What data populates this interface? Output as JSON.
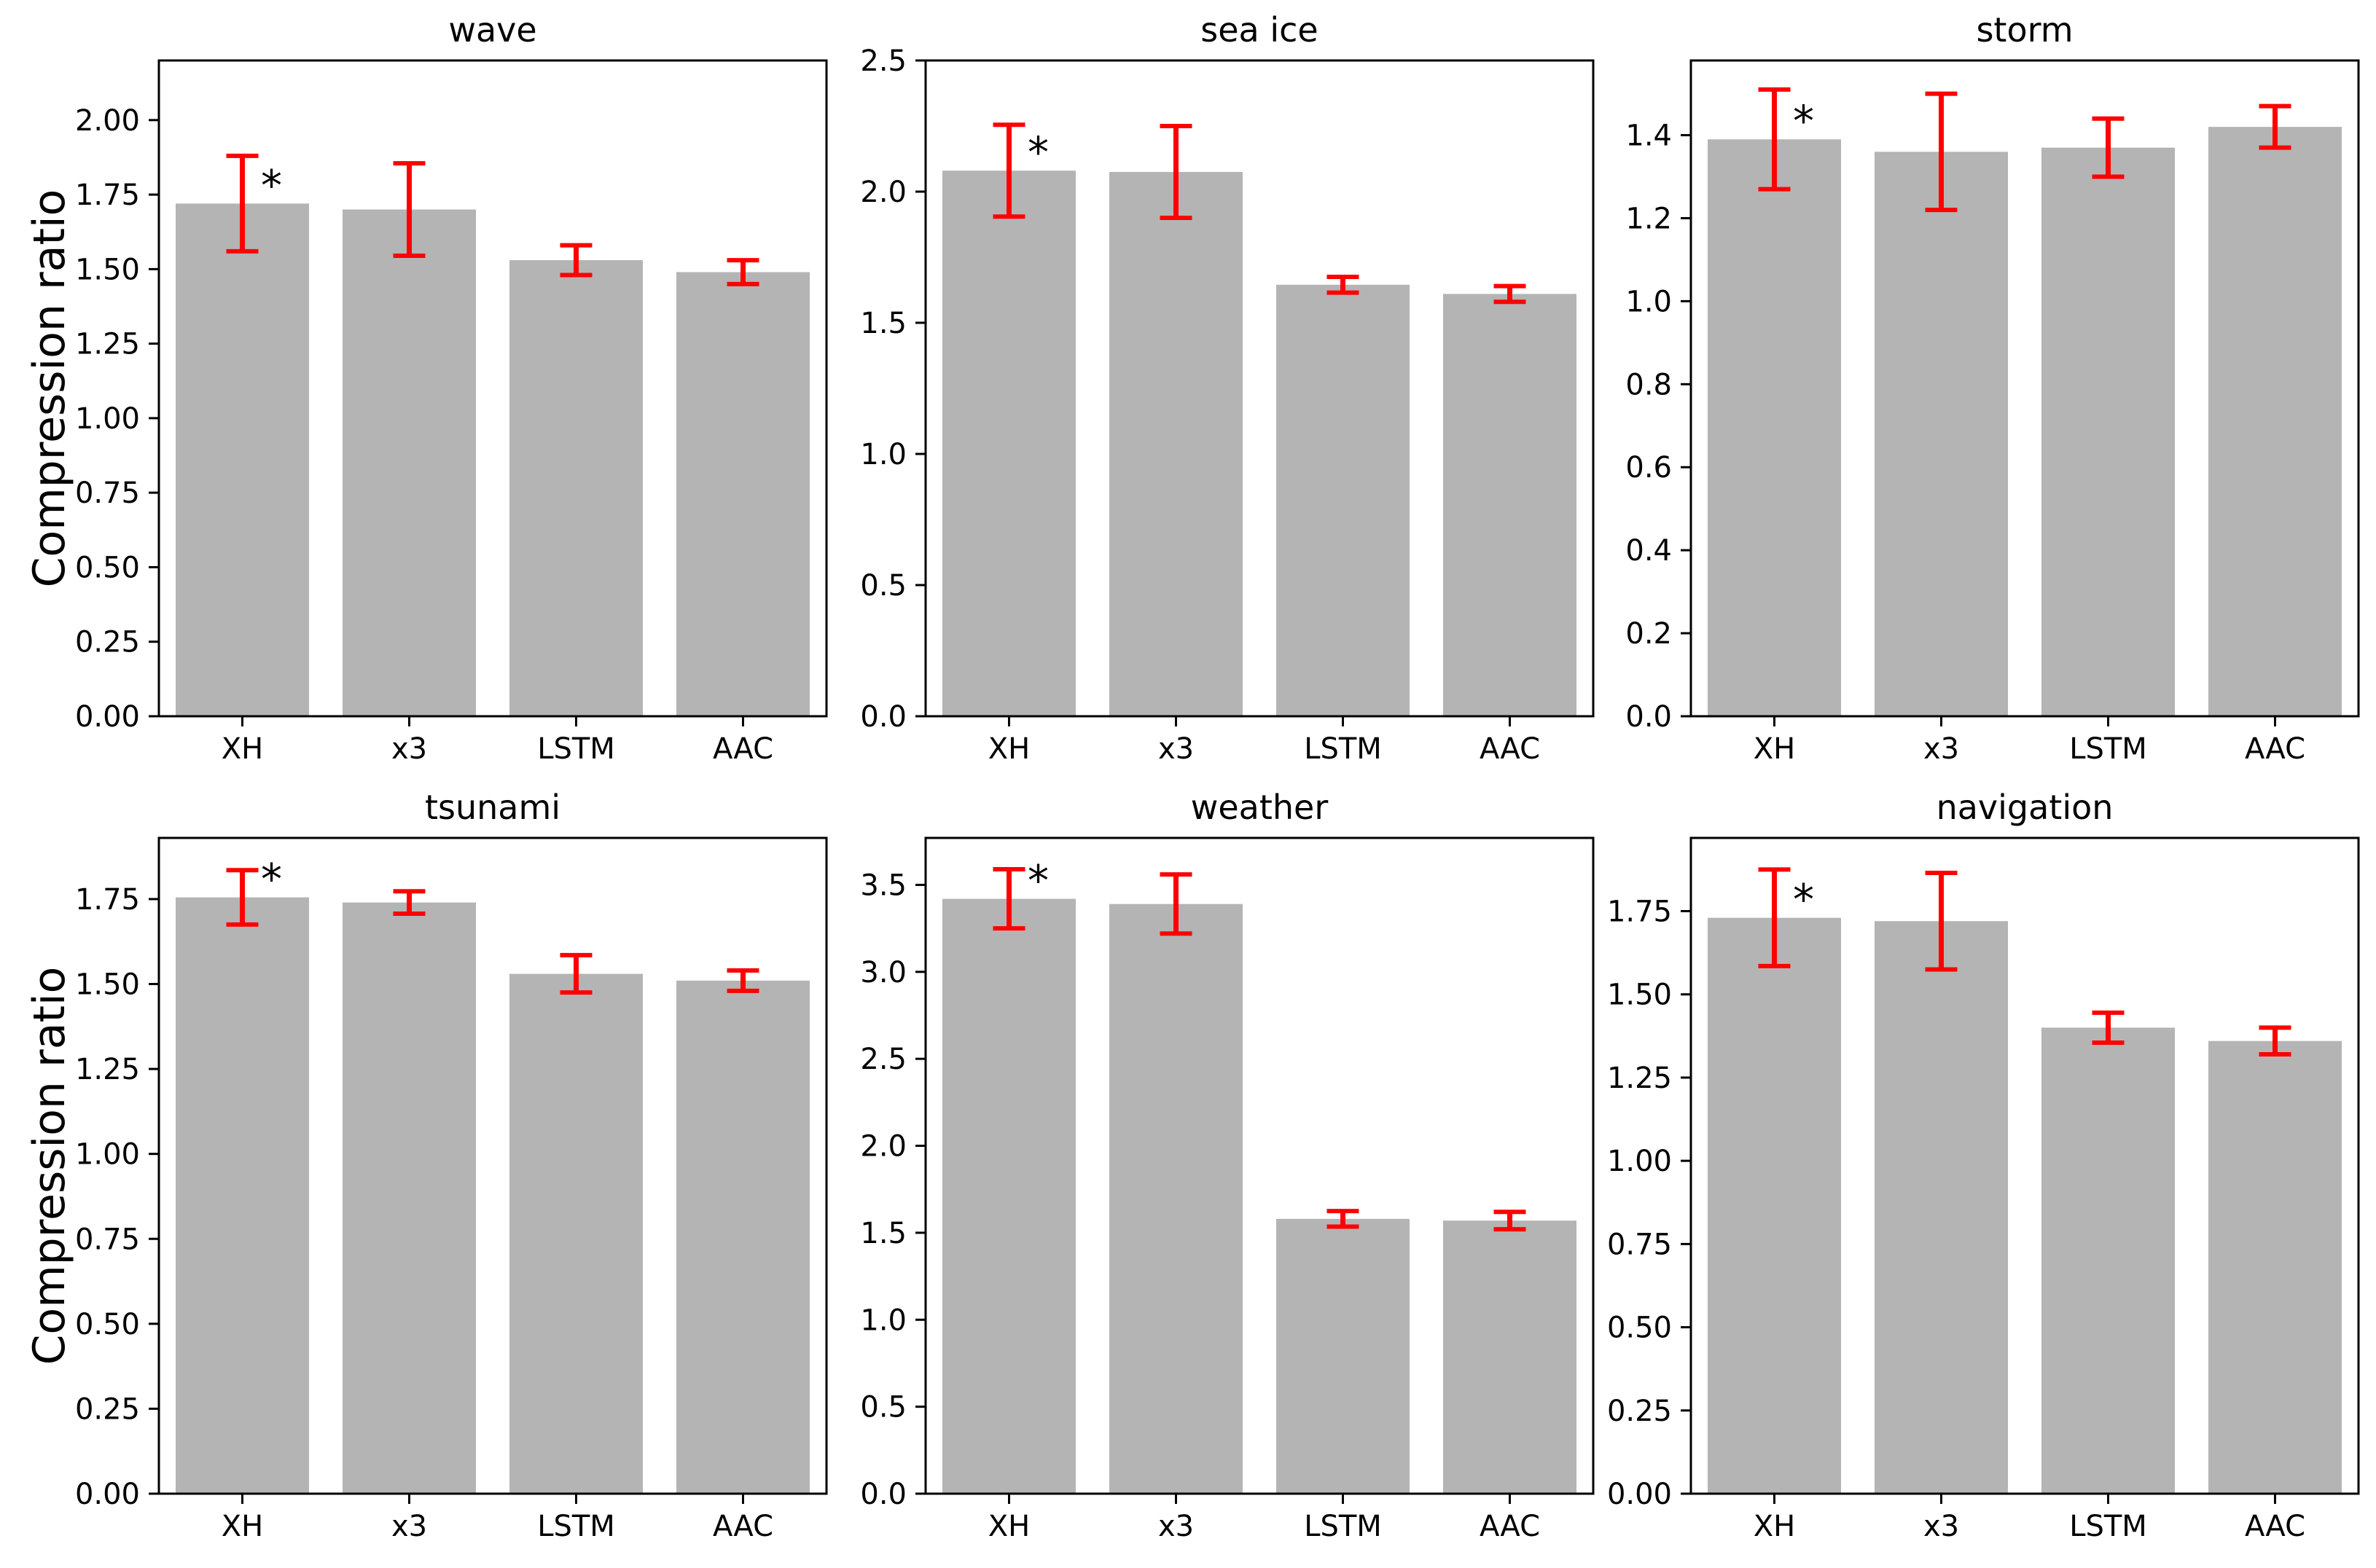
{
  "figure": {
    "background": "#ffffff",
    "bar_color": "#b4b4b4",
    "error_color": "#ff0000",
    "frame_color": "#000000",
    "text_color": "#000000",
    "significance_marker": "*"
  },
  "chart_data": [
    {
      "type": "bar",
      "title": "wave",
      "ylabel": "Compression ratio",
      "categories": [
        "XH",
        "x3",
        "LSTM",
        "AAC"
      ],
      "values": [
        1.72,
        1.7,
        1.53,
        1.49
      ],
      "errors": [
        0.16,
        0.155,
        0.05,
        0.04
      ],
      "significant_category": "XH",
      "marker": "*",
      "ylim": [
        0,
        2.2
      ],
      "ytick_step": 0.25,
      "ytick_decimals": 2,
      "grid": false
    },
    {
      "type": "bar",
      "title": "sea ice",
      "ylabel": "",
      "categories": [
        "XH",
        "x3",
        "LSTM",
        "AAC"
      ],
      "values": [
        2.08,
        2.075,
        1.645,
        1.61
      ],
      "errors": [
        0.175,
        0.175,
        0.03,
        0.03
      ],
      "significant_category": "XH",
      "marker": "*",
      "ylim": [
        0,
        2.5
      ],
      "ytick_step": 0.5,
      "ytick_decimals": 1,
      "grid": false
    },
    {
      "type": "bar",
      "title": "storm",
      "ylabel": "",
      "categories": [
        "XH",
        "x3",
        "LSTM",
        "AAC"
      ],
      "values": [
        1.39,
        1.36,
        1.37,
        1.42
      ],
      "errors": [
        0.12,
        0.14,
        0.07,
        0.05
      ],
      "significant_category": "XH",
      "marker": "*",
      "ylim": [
        0,
        1.58
      ],
      "ytick_step": 0.2,
      "ytick_decimals": 1,
      "grid": false
    },
    {
      "type": "bar",
      "title": "tsunami",
      "ylabel": "Compression ratio",
      "categories": [
        "XH",
        "x3",
        "LSTM",
        "AAC"
      ],
      "values": [
        1.755,
        1.74,
        1.53,
        1.51
      ],
      "errors": [
        0.08,
        0.033,
        0.055,
        0.03
      ],
      "significant_category": "XH",
      "marker": "*",
      "ylim": [
        0,
        1.93
      ],
      "ytick_step": 0.25,
      "ytick_decimals": 2,
      "grid": false
    },
    {
      "type": "bar",
      "title": "weather",
      "ylabel": "",
      "categories": [
        "XH",
        "x3",
        "LSTM",
        "AAC"
      ],
      "values": [
        3.42,
        3.39,
        1.58,
        1.57
      ],
      "errors": [
        0.17,
        0.17,
        0.045,
        0.05
      ],
      "significant_category": "XH",
      "marker": "*",
      "ylim": [
        0,
        3.77
      ],
      "ytick_step": 0.5,
      "ytick_decimals": 1,
      "grid": false
    },
    {
      "type": "bar",
      "title": "navigation",
      "ylabel": "",
      "categories": [
        "XH",
        "x3",
        "LSTM",
        "AAC"
      ],
      "values": [
        1.73,
        1.72,
        1.4,
        1.36
      ],
      "errors": [
        0.145,
        0.145,
        0.045,
        0.04
      ],
      "significant_category": "XH",
      "marker": "*",
      "ylim": [
        0,
        1.97
      ],
      "ytick_step": 0.25,
      "ytick_decimals": 2,
      "grid": false
    }
  ]
}
